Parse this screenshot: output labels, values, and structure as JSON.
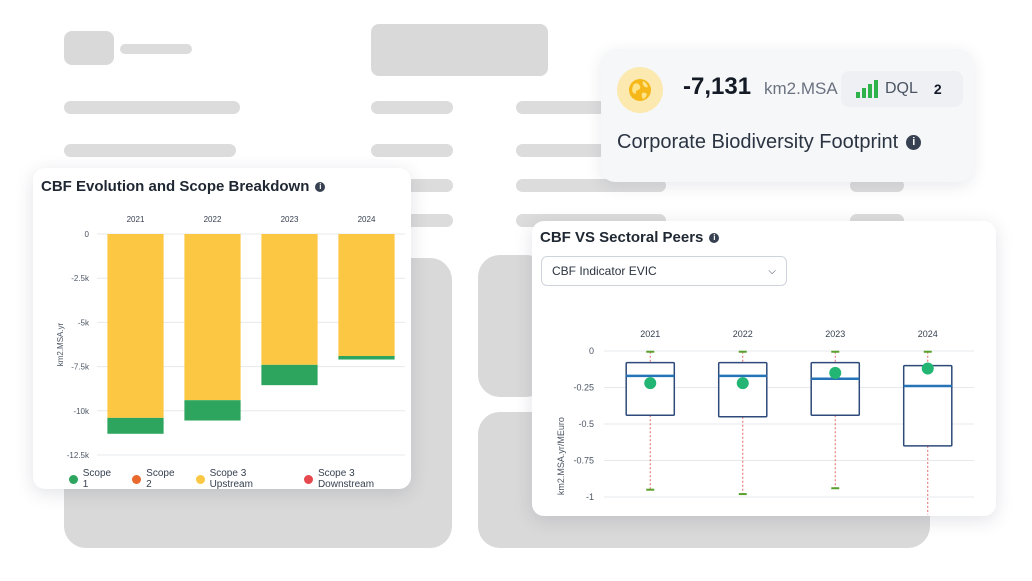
{
  "kpi": {
    "value": "-7,131",
    "unit": "km2.MSA",
    "dql_label": "DQL",
    "dql_value": "2",
    "title": "Corporate Biodiversity Footprint",
    "icon": "globe-icon",
    "accent": "#2fb24a"
  },
  "evolution_card": {
    "title": "CBF Evolution and Scope Breakdown",
    "legend": [
      {
        "label": "Scope 1",
        "color": "#2ea55e"
      },
      {
        "label": "Scope 2",
        "color": "#e8692b"
      },
      {
        "label": "Scope 3 Upstream",
        "color": "#fcc844"
      },
      {
        "label": "Scope 3 Downstream",
        "color": "#e5484d"
      }
    ]
  },
  "peers_card": {
    "title": "CBF VS Sectoral Peers",
    "dropdown_value": "CBF Indicator EVIC"
  },
  "chart_data": [
    {
      "type": "bar",
      "title": "CBF Evolution and Scope Breakdown",
      "ylabel": "km2.MSA.yr",
      "categories": [
        "2021",
        "2022",
        "2023",
        "2024"
      ],
      "ylim": [
        -12500,
        0
      ],
      "yticks": [
        0,
        -2500,
        -5000,
        -7500,
        -10000,
        -12500
      ],
      "ytick_labels": [
        "0",
        "-2.5k",
        "-5k",
        "-7.5k",
        "-10k",
        "-12.5k"
      ],
      "stacked": true,
      "legend_position": "bottom",
      "series": [
        {
          "name": "Scope 1",
          "color": "#2ea55e",
          "values": [
            -900,
            -1150,
            -1150,
            -200
          ]
        },
        {
          "name": "Scope 2",
          "color": "#e8692b",
          "values": [
            0,
            0,
            0,
            0
          ]
        },
        {
          "name": "Scope 3 Upstream",
          "color": "#fcc844",
          "values": [
            -10400,
            -9400,
            -7400,
            -6900
          ]
        },
        {
          "name": "Scope 3 Downstream",
          "color": "#e5484d",
          "values": [
            0,
            0,
            0,
            0
          ]
        }
      ]
    },
    {
      "type": "box",
      "title": "CBF VS Sectoral Peers",
      "ylabel": "km2.MSA.yr/MEuro",
      "categories": [
        "2021",
        "2022",
        "2023",
        "2024"
      ],
      "ylim": [
        -1.1,
        0
      ],
      "yticks": [
        0,
        -0.25,
        -0.5,
        -0.75,
        -1
      ],
      "ytick_labels": [
        "0",
        "-0.25",
        "-0.5",
        "-0.75",
        "-1"
      ],
      "boxes": [
        {
          "whisker_high": -0.005,
          "q3": -0.08,
          "median": -0.17,
          "q1": -0.44,
          "whisker_low": -0.95
        },
        {
          "whisker_high": -0.005,
          "q3": -0.08,
          "median": -0.17,
          "q1": -0.45,
          "whisker_low": -0.98
        },
        {
          "whisker_high": -0.005,
          "q3": -0.08,
          "median": -0.19,
          "q1": -0.44,
          "whisker_low": -0.94
        },
        {
          "whisker_high": -0.005,
          "q3": -0.1,
          "median": -0.24,
          "q1": -0.65,
          "whisker_low": -1.12
        }
      ],
      "company_values": [
        -0.22,
        -0.22,
        -0.15,
        -0.12
      ],
      "box_color": "#2d4a7a",
      "median_color": "#2574b8",
      "point_color": "#22b573",
      "whisker_cap_color": "#5aa02c"
    }
  ]
}
